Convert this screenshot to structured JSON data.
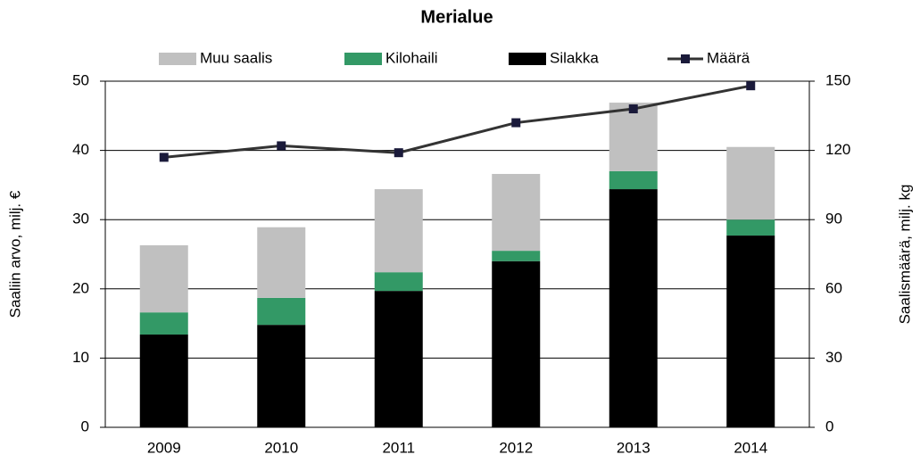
{
  "chart_data": {
    "type": "bar",
    "stacked": true,
    "title": "Merialue",
    "y_label": "Saaliin arvo, milj. €",
    "y2_label": "Saalismäärä, milj. kg",
    "categories": [
      "2009",
      "2010",
      "2011",
      "2012",
      "2013",
      "2014"
    ],
    "series": [
      {
        "name": "Muu saalis",
        "color": "#c0c0c0",
        "type": "bar",
        "values": [
          9.7,
          10.2,
          12.0,
          11.1,
          9.9,
          10.5
        ]
      },
      {
        "name": "Kilohaili",
        "color": "#339966",
        "type": "bar",
        "values": [
          3.2,
          3.9,
          2.7,
          1.5,
          2.6,
          2.3
        ]
      },
      {
        "name": "Silakka",
        "color": "#000000",
        "type": "bar",
        "values": [
          13.4,
          14.8,
          19.7,
          24.0,
          34.4,
          27.7
        ]
      },
      {
        "name": "Määrä",
        "color": "#333333",
        "type": "line",
        "axis": "y2",
        "values": [
          117,
          122,
          119,
          132,
          138,
          148
        ]
      }
    ],
    "ylim": [
      0,
      50
    ],
    "yticks": [
      0,
      10,
      20,
      30,
      40,
      50
    ],
    "y2lim": [
      0,
      150
    ],
    "y2ticks": [
      0,
      30,
      60,
      90,
      120,
      150
    ],
    "grid": true,
    "legend": "top"
  }
}
